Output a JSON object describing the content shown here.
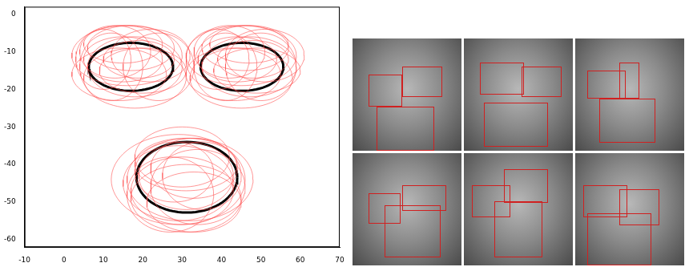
{
  "chart_data": {
    "type": "scatter",
    "xlim": [
      -10,
      70
    ],
    "xticks": [
      -10,
      0,
      10,
      20,
      30,
      40,
      50,
      60,
      70
    ],
    "ylim": [
      -62,
      2
    ],
    "yticks": [
      -60,
      -50,
      -40,
      -30,
      -20,
      -10,
      0
    ],
    "grid": false,
    "series": [
      {
        "color": "#ff5050",
        "line_style": "thin",
        "ellipses": [
          {
            "cx": 15,
            "cy": -12,
            "rx": 10,
            "ry": 6
          },
          {
            "cx": 18,
            "cy": -14,
            "rx": 12,
            "ry": 8
          },
          {
            "cx": 13,
            "cy": -10,
            "rx": 9,
            "ry": 7
          },
          {
            "cx": 20,
            "cy": -15,
            "rx": 11,
            "ry": 6
          },
          {
            "cx": 16,
            "cy": -11,
            "rx": 14,
            "ry": 8
          },
          {
            "cx": 12,
            "cy": -14,
            "rx": 8,
            "ry": 9
          },
          {
            "cx": 19,
            "cy": -12,
            "rx": 9,
            "ry": 5
          },
          {
            "cx": 22,
            "cy": -11,
            "rx": 10,
            "ry": 7
          },
          {
            "cx": 14,
            "cy": -16,
            "rx": 12,
            "ry": 7
          },
          {
            "cx": 17,
            "cy": -9,
            "rx": 11,
            "ry": 6
          },
          {
            "cx": 10,
            "cy": -12,
            "rx": 7,
            "ry": 8
          },
          {
            "cx": 24,
            "cy": -14,
            "rx": 9,
            "ry": 9
          },
          {
            "cx": 18,
            "cy": -17,
            "rx": 13,
            "ry": 8
          },
          {
            "cx": 15,
            "cy": -8,
            "rx": 10,
            "ry": 5
          },
          {
            "cx": 44,
            "cy": -12,
            "rx": 10,
            "ry": 6
          },
          {
            "cx": 47,
            "cy": -14,
            "rx": 12,
            "ry": 8
          },
          {
            "cx": 42,
            "cy": -10,
            "rx": 9,
            "ry": 7
          },
          {
            "cx": 49,
            "cy": -15,
            "rx": 11,
            "ry": 6
          },
          {
            "cx": 45,
            "cy": -11,
            "rx": 14,
            "ry": 8
          },
          {
            "cx": 41,
            "cy": -14,
            "rx": 8,
            "ry": 9
          },
          {
            "cx": 48,
            "cy": -12,
            "rx": 9,
            "ry": 5
          },
          {
            "cx": 51,
            "cy": -11,
            "rx": 10,
            "ry": 7
          },
          {
            "cx": 43,
            "cy": -16,
            "rx": 12,
            "ry": 7
          },
          {
            "cx": 46,
            "cy": -9,
            "rx": 11,
            "ry": 6
          },
          {
            "cx": 39,
            "cy": -12,
            "rx": 8,
            "ry": 8
          },
          {
            "cx": 50,
            "cy": -14,
            "rx": 9,
            "ry": 9
          },
          {
            "cx": 45,
            "cy": -17,
            "rx": 13,
            "ry": 8
          },
          {
            "cx": 47,
            "cy": -8,
            "rx": 10,
            "ry": 5
          },
          {
            "cx": 31,
            "cy": -43,
            "rx": 12,
            "ry": 9
          },
          {
            "cx": 29,
            "cy": -45,
            "rx": 14,
            "ry": 10
          },
          {
            "cx": 33,
            "cy": -41,
            "rx": 11,
            "ry": 8
          },
          {
            "cx": 30,
            "cy": -47,
            "rx": 13,
            "ry": 9
          },
          {
            "cx": 32,
            "cy": -44,
            "rx": 16,
            "ry": 11
          },
          {
            "cx": 28,
            "cy": -42,
            "rx": 10,
            "ry": 8
          },
          {
            "cx": 34,
            "cy": -46,
            "rx": 12,
            "ry": 10
          },
          {
            "cx": 31,
            "cy": -40,
            "rx": 13,
            "ry": 7
          },
          {
            "cx": 27,
            "cy": -48,
            "rx": 11,
            "ry": 10
          },
          {
            "cx": 35,
            "cy": -43,
            "rx": 10,
            "ry": 9
          },
          {
            "cx": 31,
            "cy": -49,
            "rx": 14,
            "ry": 9
          },
          {
            "cx": 30,
            "cy": -38,
            "rx": 12,
            "ry": 8
          },
          {
            "cx": 33,
            "cy": -50,
            "rx": 12,
            "ry": 8
          },
          {
            "cx": 29,
            "cy": -44,
            "rx": 17,
            "ry": 12
          }
        ]
      },
      {
        "color": "#000000",
        "line_style": "thick",
        "ellipses": [
          {
            "cx": 17,
            "cy": -14,
            "rx": 10.7,
            "ry": 6.4
          },
          {
            "cx": 45.2,
            "cy": -14,
            "rx": 10.5,
            "ry": 6.4
          },
          {
            "cx": 31.2,
            "cy": -43.4,
            "rx": 12.8,
            "ry": 9.4
          }
        ]
      }
    ]
  }
}
